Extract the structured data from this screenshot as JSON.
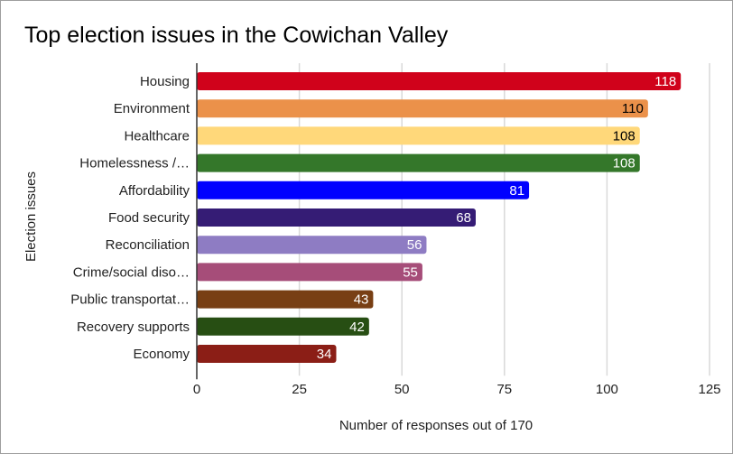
{
  "chart_data": {
    "type": "bar",
    "orientation": "horizontal",
    "title": "Top election issues in the Cowichan Valley",
    "xlabel": "Number of responses out of 170",
    "ylabel": "Election issues",
    "xlim": [
      0,
      125
    ],
    "xticks": [
      0,
      25,
      50,
      75,
      100,
      125
    ],
    "grid": true,
    "legend": "none",
    "categories": [
      "Housing",
      "Environment",
      "Healthcare",
      "Homelessness /…",
      "Affordability",
      "Food security",
      "Reconciliation",
      "Crime/social diso…",
      "Public transportat…",
      "Recovery supports",
      "Economy"
    ],
    "values": [
      118,
      110,
      108,
      108,
      81,
      68,
      56,
      55,
      43,
      42,
      34
    ],
    "colors": [
      "#d0021b",
      "#eb914a",
      "#ffd87a",
      "#34772a",
      "#0000ff",
      "#351c75",
      "#8e7cc3",
      "#a64d79",
      "#783f14",
      "#274e13",
      "#8b1e16"
    ],
    "label_colors": [
      "#ffffff",
      "#000000",
      "#000000",
      "#ffffff",
      "#ffffff",
      "#ffffff",
      "#ffffff",
      "#ffffff",
      "#ffffff",
      "#ffffff",
      "#ffffff"
    ]
  }
}
